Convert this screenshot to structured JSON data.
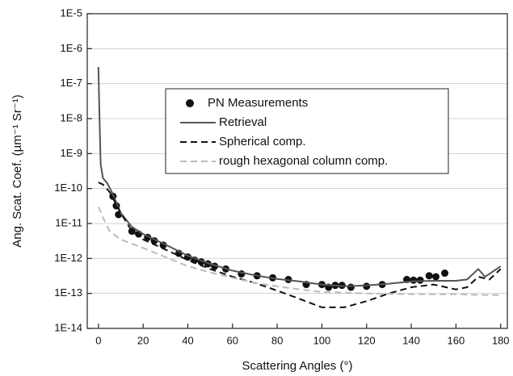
{
  "chart_data": {
    "type": "line",
    "x_label": "Scattering Angles (°)",
    "y_label": "Ang. Scat. Coef. (µm⁻¹ Sr⁻¹)",
    "xlim": [
      -5,
      183
    ],
    "xticks": [
      0,
      20,
      40,
      60,
      80,
      100,
      120,
      140,
      160,
      180
    ],
    "ylim": [
      1e-14,
      1e-05
    ],
    "log_y": true,
    "yticks": [
      {
        "value": 1e-14,
        "label": "1E-14"
      },
      {
        "value": 1e-13,
        "label": "1E-13"
      },
      {
        "value": 1e-12,
        "label": "1E-12"
      },
      {
        "value": 1e-11,
        "label": "1E-11"
      },
      {
        "value": 1e-10,
        "label": "1E-10"
      },
      {
        "value": 1e-09,
        "label": "1E-9"
      },
      {
        "value": 1e-08,
        "label": "1E-8"
      },
      {
        "value": 1e-07,
        "label": "1E-7"
      },
      {
        "value": 1e-06,
        "label": "1E-6"
      },
      {
        "value": 1e-05,
        "label": "1E-5"
      }
    ],
    "grid": true,
    "legend": "center",
    "series": [
      {
        "name": "PN Measurements",
        "kind": "scatter",
        "color": "#111111",
        "x": [
          6.5,
          8,
          9,
          15,
          18,
          22,
          25,
          29,
          36,
          40,
          43,
          46,
          49,
          52,
          57,
          64,
          71,
          78,
          85,
          93,
          100,
          103,
          106,
          109,
          113,
          120,
          127,
          138,
          141,
          144,
          148,
          151,
          155
        ],
        "values": [
          6e-11,
          3.2e-11,
          1.8e-11,
          6e-12,
          5e-12,
          4e-12,
          3.2e-12,
          2.4e-12,
          1.4e-12,
          1.1e-12,
          9e-13,
          8e-13,
          7e-13,
          6e-13,
          5e-13,
          3.6e-13,
          3.2e-13,
          2.8e-13,
          2.5e-13,
          1.8e-13,
          1.8e-13,
          1.5e-13,
          1.7e-13,
          1.7e-13,
          1.5e-13,
          1.6e-13,
          1.8e-13,
          2.5e-13,
          2.4e-13,
          2.4e-13,
          3.2e-13,
          3e-13,
          3.8e-13
        ]
      },
      {
        "name": "Retrieval",
        "kind": "solid",
        "color": "#555555",
        "x": [
          0,
          0.5,
          1,
          2,
          4,
          6,
          10,
          15,
          20,
          30,
          40,
          50,
          60,
          70,
          80,
          90,
          100,
          110,
          120,
          130,
          140,
          150,
          160,
          165,
          170,
          173,
          176,
          180
        ],
        "values": [
          3e-07,
          1e-08,
          5e-10,
          2e-10,
          1.4e-10,
          8e-11,
          2e-11,
          8e-12,
          5e-12,
          2.5e-12,
          1.2e-12,
          7e-13,
          4.5e-13,
          3.3e-13,
          2.6e-13,
          2.2e-13,
          1.8e-13,
          1.6e-13,
          1.7e-13,
          1.9e-13,
          2.2e-13,
          2.3e-13,
          2.3e-13,
          2.5e-13,
          5e-13,
          3e-13,
          4e-13,
          6e-13
        ]
      },
      {
        "name": "Spherical comp.",
        "kind": "dashed",
        "color": "#111111",
        "x": [
          0,
          2,
          5,
          10,
          15,
          20,
          30,
          40,
          50,
          60,
          70,
          80,
          90,
          100,
          110,
          120,
          130,
          140,
          150,
          160,
          165,
          170,
          175,
          180
        ],
        "values": [
          1.5e-10,
          1.3e-10,
          8e-11,
          2e-11,
          6e-12,
          3.5e-12,
          1.8e-12,
          9e-13,
          5e-13,
          3e-13,
          2e-13,
          1.2e-13,
          7e-14,
          4e-14,
          4e-14,
          6e-14,
          1e-13,
          1.5e-13,
          1.8e-13,
          1.3e-13,
          1.5e-13,
          3e-13,
          2.5e-13,
          5e-13
        ]
      },
      {
        "name": "rough hexagonal column comp.",
        "kind": "dashed",
        "color": "#bbbbbb",
        "x": [
          0,
          2,
          5,
          10,
          20,
          30,
          40,
          50,
          60,
          70,
          80,
          90,
          100,
          110,
          120,
          140,
          160,
          170,
          180
        ],
        "values": [
          3e-11,
          1.5e-11,
          6e-12,
          3.5e-12,
          2e-12,
          1.1e-12,
          6e-13,
          4e-13,
          2.8e-13,
          2e-13,
          1.6e-13,
          1.3e-13,
          1.1e-13,
          1.05e-13,
          1e-13,
          9.5e-14,
          9.5e-14,
          9e-14,
          9e-14
        ]
      }
    ]
  }
}
